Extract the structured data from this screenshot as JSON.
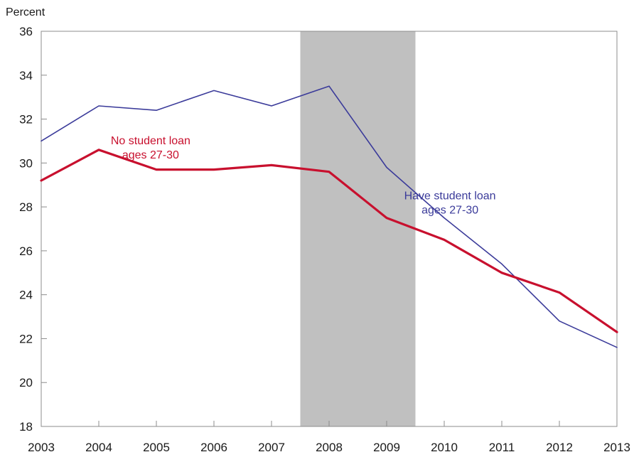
{
  "chart_data": {
    "type": "line",
    "title": "",
    "xlabel": "",
    "ylabel": "Percent",
    "x": [
      2003,
      2004,
      2005,
      2006,
      2007,
      2008,
      2009,
      2010,
      2011,
      2012,
      2013
    ],
    "ylim": [
      18,
      36
    ],
    "xlim": [
      2003,
      2013
    ],
    "yticks": [
      "18",
      "20",
      "22",
      "24",
      "26",
      "28",
      "30",
      "32",
      "34",
      "36"
    ],
    "xticks": [
      "2003",
      "2004",
      "2005",
      "2006",
      "2007",
      "2008",
      "2009",
      "2010",
      "2011",
      "2012",
      "2013"
    ],
    "grid": false,
    "legend": "none",
    "shaded_region": {
      "x_start": 2007.5,
      "x_end": 2009.5,
      "color": "#c0c0c0"
    },
    "series": [
      {
        "name": "Have student loan ages 27-30",
        "label_lines": [
          "Have student loan",
          "ages 27-30"
        ],
        "color": "#3b3b9a",
        "values": [
          31.0,
          32.6,
          32.4,
          33.3,
          32.6,
          33.5,
          29.8,
          27.5,
          25.4,
          22.8,
          21.6
        ]
      },
      {
        "name": "No student loan ages 27-30",
        "label_lines": [
          "No student loan",
          "ages 27-30"
        ],
        "color": "#c8102e",
        "values": [
          29.2,
          30.6,
          29.7,
          29.7,
          29.9,
          29.6,
          27.5,
          26.5,
          25.0,
          24.1,
          22.3
        ]
      }
    ]
  }
}
